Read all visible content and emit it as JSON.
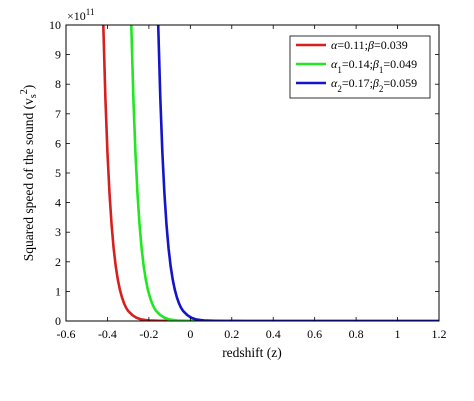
{
  "chart_data": {
    "type": "line",
    "xlabel": "redshift (z)",
    "ylabel": "Squared speed of the sound (v_s^2)",
    "ylabel_parts": {
      "main": "Squared speed of the sound (v",
      "sub": "s",
      "sup": "2",
      "close": ")"
    },
    "exponent_label": {
      "base": "×10",
      "power": "11"
    },
    "xlim": [
      -0.6,
      1.2
    ],
    "ylim": [
      0,
      10
    ],
    "y_scale_factor": 100000000000.0,
    "x_ticks": [
      "-0.6",
      "-0.4",
      "-0.2",
      "0",
      "0.2",
      "0.4",
      "0.6",
      "0.8",
      "1",
      "1.2"
    ],
    "y_ticks": [
      "0",
      "1",
      "2",
      "3",
      "4",
      "5",
      "6",
      "7",
      "8",
      "9",
      "10"
    ],
    "grid": false,
    "legend_position": "top-right",
    "series": [
      {
        "name": "α=0.11;β=0.039",
        "legend": [
          [
            "α",
            ""
          ],
          [
            "",
            "=0.11;"
          ],
          [
            "β",
            ""
          ],
          [
            "",
            "=0.039"
          ]
        ],
        "color": "#d62020",
        "x": [
          -0.42,
          -0.41,
          -0.4,
          -0.39,
          -0.38,
          -0.37,
          -0.36,
          -0.35,
          -0.34,
          -0.33,
          -0.32,
          -0.31,
          -0.3,
          -0.28,
          -0.26,
          -0.24,
          -0.22,
          -0.2,
          -0.15,
          -0.1,
          -0.05,
          0.0,
          0.1,
          0.3,
          0.6,
          0.9,
          1.2
        ],
        "y": [
          10.0,
          7.55,
          5.7,
          4.3,
          3.25,
          2.45,
          1.85,
          1.4,
          1.06,
          0.8,
          0.6,
          0.45,
          0.34,
          0.2,
          0.11,
          0.06,
          0.035,
          0.02,
          0.008,
          0.003,
          0.001,
          0.0,
          0.0,
          0.0,
          0.0,
          0.0,
          0.0
        ]
      },
      {
        "name": "α1=0.14;β1=0.049",
        "legend": [
          [
            "α",
            ""
          ],
          [
            "1",
            "sub"
          ],
          [
            "",
            "=0.14;"
          ],
          [
            "β",
            ""
          ],
          [
            "1",
            "sub"
          ],
          [
            "",
            "=0.049"
          ]
        ],
        "color": "#22e622",
        "x": [
          -0.285,
          -0.275,
          -0.265,
          -0.255,
          -0.245,
          -0.235,
          -0.225,
          -0.215,
          -0.205,
          -0.195,
          -0.185,
          -0.175,
          -0.165,
          -0.145,
          -0.125,
          -0.105,
          -0.085,
          -0.065,
          -0.015,
          0.035,
          0.085,
          0.135,
          0.2,
          0.4,
          0.7,
          1.0,
          1.2
        ],
        "y": [
          10.0,
          7.55,
          5.7,
          4.3,
          3.25,
          2.45,
          1.85,
          1.4,
          1.06,
          0.8,
          0.6,
          0.45,
          0.34,
          0.2,
          0.11,
          0.06,
          0.035,
          0.02,
          0.008,
          0.003,
          0.001,
          0.0,
          0.0,
          0.0,
          0.0,
          0.0,
          0.0
        ]
      },
      {
        "name": "α2=0.17;β2=0.059",
        "legend": [
          [
            "α",
            ""
          ],
          [
            "2",
            "sub"
          ],
          [
            "",
            "=0.17;"
          ],
          [
            "β",
            ""
          ],
          [
            "2",
            "sub"
          ],
          [
            "",
            "=0.059"
          ]
        ],
        "color": "#1414c8",
        "x": [
          -0.155,
          -0.145,
          -0.135,
          -0.125,
          -0.115,
          -0.105,
          -0.095,
          -0.085,
          -0.075,
          -0.065,
          -0.055,
          -0.045,
          -0.035,
          -0.015,
          0.005,
          0.025,
          0.045,
          0.065,
          0.115,
          0.165,
          0.215,
          0.265,
          0.35,
          0.5,
          0.8,
          1.0,
          1.2
        ],
        "y": [
          10.0,
          7.55,
          5.7,
          4.3,
          3.25,
          2.45,
          1.85,
          1.4,
          1.06,
          0.8,
          0.6,
          0.45,
          0.34,
          0.2,
          0.11,
          0.06,
          0.035,
          0.02,
          0.008,
          0.003,
          0.001,
          0.0,
          0.0,
          0.0,
          0.0,
          0.0,
          0.0
        ]
      }
    ]
  }
}
